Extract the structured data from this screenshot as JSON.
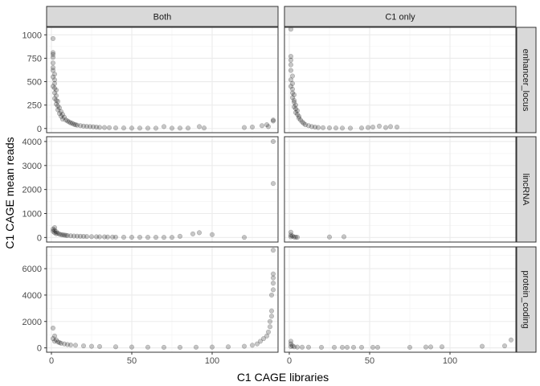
{
  "chart_data": {
    "type": "scatter",
    "title": "",
    "xlabel": "C1 CAGE libraries",
    "ylabel": "C1 CAGE mean reads",
    "xlim": [
      -3,
      141
    ],
    "x_ticks": [
      0,
      50,
      100
    ],
    "grid": true,
    "legend": "none",
    "point_color": "#000000",
    "point_opacity": 0.22,
    "panel_border": "#333333",
    "strip_fill": "#d9d9d9",
    "columns": [
      "Both",
      "C1 only"
    ],
    "rows": [
      {
        "label": "enhancer_locus",
        "ylim": [
          -45,
          1080
        ],
        "y_ticks": [
          0,
          250,
          500,
          750,
          1000
        ]
      },
      {
        "label": "lincRNA",
        "ylim": [
          -190,
          4200
        ],
        "y_ticks": [
          0,
          1000,
          2000,
          3000,
          4000
        ]
      },
      {
        "label": "protein_coding",
        "ylim": [
          -330,
          7650
        ],
        "y_ticks": [
          0,
          2000,
          4000,
          6000
        ]
      }
    ],
    "panels": [
      {
        "row": "enhancer_locus",
        "column": "Both",
        "points": [
          [
            1,
            960
          ],
          [
            1,
            810
          ],
          [
            1,
            790
          ],
          [
            1,
            760
          ],
          [
            1,
            700
          ],
          [
            1,
            650
          ],
          [
            1,
            620
          ],
          [
            2,
            580
          ],
          [
            1,
            550
          ],
          [
            2,
            520
          ],
          [
            2,
            480
          ],
          [
            1,
            450
          ],
          [
            2,
            430
          ],
          [
            3,
            410
          ],
          [
            2,
            380
          ],
          [
            3,
            350
          ],
          [
            2,
            320
          ],
          [
            3,
            300
          ],
          [
            4,
            290
          ],
          [
            3,
            260
          ],
          [
            4,
            240
          ],
          [
            5,
            220
          ],
          [
            4,
            200
          ],
          [
            6,
            180
          ],
          [
            5,
            160
          ],
          [
            7,
            150
          ],
          [
            6,
            130
          ],
          [
            8,
            120
          ],
          [
            7,
            100
          ],
          [
            9,
            90
          ],
          [
            10,
            80
          ],
          [
            11,
            70
          ],
          [
            12,
            60
          ],
          [
            13,
            55
          ],
          [
            14,
            45
          ],
          [
            15,
            40
          ],
          [
            16,
            35
          ],
          [
            18,
            30
          ],
          [
            20,
            25
          ],
          [
            22,
            22
          ],
          [
            24,
            20
          ],
          [
            26,
            18
          ],
          [
            28,
            15
          ],
          [
            30,
            12
          ],
          [
            33,
            10
          ],
          [
            36,
            8
          ],
          [
            40,
            6
          ],
          [
            45,
            5
          ],
          [
            50,
            4
          ],
          [
            55,
            4
          ],
          [
            60,
            3
          ],
          [
            65,
            3
          ],
          [
            70,
            20
          ],
          [
            75,
            3
          ],
          [
            80,
            4
          ],
          [
            85,
            4
          ],
          [
            92,
            20
          ],
          [
            95,
            5
          ],
          [
            120,
            10
          ],
          [
            125,
            15
          ],
          [
            131,
            30
          ],
          [
            134,
            40
          ],
          [
            135,
            20
          ],
          [
            138,
            80
          ],
          [
            138,
            90
          ]
        ]
      },
      {
        "row": "enhancer_locus",
        "column": "C1 only",
        "points": [
          [
            1,
            1060
          ],
          [
            1,
            770
          ],
          [
            1,
            730
          ],
          [
            1,
            680
          ],
          [
            1,
            620
          ],
          [
            2,
            560
          ],
          [
            1,
            520
          ],
          [
            2,
            480
          ],
          [
            1,
            450
          ],
          [
            2,
            420
          ],
          [
            2,
            380
          ],
          [
            3,
            360
          ],
          [
            2,
            330
          ],
          [
            3,
            300
          ],
          [
            3,
            280
          ],
          [
            4,
            250
          ],
          [
            3,
            230
          ],
          [
            4,
            210
          ],
          [
            5,
            190
          ],
          [
            4,
            170
          ],
          [
            5,
            150
          ],
          [
            6,
            130
          ],
          [
            6,
            110
          ],
          [
            7,
            90
          ],
          [
            8,
            70
          ],
          [
            9,
            55
          ],
          [
            10,
            40
          ],
          [
            12,
            30
          ],
          [
            14,
            20
          ],
          [
            16,
            15
          ],
          [
            18,
            10
          ],
          [
            21,
            8
          ],
          [
            25,
            6
          ],
          [
            29,
            5
          ],
          [
            33,
            4
          ],
          [
            38,
            3
          ],
          [
            45,
            5
          ],
          [
            49,
            10
          ],
          [
            52,
            15
          ],
          [
            56,
            25
          ],
          [
            60,
            10
          ],
          [
            63,
            20
          ],
          [
            67,
            15
          ]
        ]
      },
      {
        "row": "lincRNA",
        "column": "Both",
        "points": [
          [
            2,
            410
          ],
          [
            1,
            350
          ],
          [
            2,
            300
          ],
          [
            1,
            260
          ],
          [
            3,
            240
          ],
          [
            2,
            200
          ],
          [
            4,
            180
          ],
          [
            3,
            160
          ],
          [
            5,
            140
          ],
          [
            6,
            120
          ],
          [
            7,
            110
          ],
          [
            8,
            100
          ],
          [
            9,
            90
          ],
          [
            10,
            80
          ],
          [
            12,
            70
          ],
          [
            14,
            60
          ],
          [
            16,
            55
          ],
          [
            18,
            50
          ],
          [
            20,
            45
          ],
          [
            22,
            40
          ],
          [
            25,
            35
          ],
          [
            28,
            30
          ],
          [
            30,
            28
          ],
          [
            33,
            25
          ],
          [
            35,
            20
          ],
          [
            38,
            18
          ],
          [
            40,
            15
          ],
          [
            45,
            12
          ],
          [
            50,
            10
          ],
          [
            55,
            10
          ],
          [
            60,
            8
          ],
          [
            65,
            8
          ],
          [
            70,
            6
          ],
          [
            75,
            6
          ],
          [
            80,
            50
          ],
          [
            88,
            150
          ],
          [
            92,
            200
          ],
          [
            100,
            120
          ],
          [
            120,
            5
          ],
          [
            138,
            4000
          ],
          [
            138,
            2250
          ]
        ]
      },
      {
        "row": "lincRNA",
        "column": "C1 only",
        "points": [
          [
            1,
            220
          ],
          [
            1,
            100
          ],
          [
            2,
            60
          ],
          [
            1,
            30
          ],
          [
            3,
            20
          ],
          [
            4,
            15
          ],
          [
            5,
            10
          ],
          [
            25,
            20
          ],
          [
            34,
            30
          ]
        ]
      },
      {
        "row": "protein_coding",
        "column": "Both",
        "points": [
          [
            1,
            1500
          ],
          [
            2,
            900
          ],
          [
            1,
            700
          ],
          [
            3,
            600
          ],
          [
            2,
            500
          ],
          [
            4,
            450
          ],
          [
            5,
            400
          ],
          [
            6,
            350
          ],
          [
            8,
            300
          ],
          [
            10,
            250
          ],
          [
            12,
            220
          ],
          [
            15,
            200
          ],
          [
            20,
            150
          ],
          [
            25,
            120
          ],
          [
            30,
            100
          ],
          [
            40,
            80
          ],
          [
            50,
            60
          ],
          [
            60,
            50
          ],
          [
            70,
            40
          ],
          [
            80,
            40
          ],
          [
            90,
            50
          ],
          [
            100,
            60
          ],
          [
            110,
            80
          ],
          [
            120,
            120
          ],
          [
            125,
            200
          ],
          [
            128,
            300
          ],
          [
            130,
            500
          ],
          [
            132,
            700
          ],
          [
            134,
            900
          ],
          [
            135,
            1200
          ],
          [
            136,
            1600
          ],
          [
            136,
            2000
          ],
          [
            137,
            2400
          ],
          [
            137,
            2800
          ],
          [
            137,
            4000
          ],
          [
            138,
            4400
          ],
          [
            138,
            4900
          ],
          [
            138,
            5300
          ],
          [
            138,
            5600
          ],
          [
            138,
            7400
          ]
        ]
      },
      {
        "row": "protein_coding",
        "column": "C1 only",
        "points": [
          [
            1,
            500
          ],
          [
            1,
            300
          ],
          [
            2,
            150
          ],
          [
            1,
            100
          ],
          [
            3,
            80
          ],
          [
            5,
            60
          ],
          [
            8,
            50
          ],
          [
            12,
            50
          ],
          [
            20,
            40
          ],
          [
            28,
            40
          ],
          [
            33,
            40
          ],
          [
            36,
            40
          ],
          [
            40,
            40
          ],
          [
            45,
            40
          ],
          [
            52,
            40
          ],
          [
            55,
            40
          ],
          [
            75,
            40
          ],
          [
            85,
            60
          ],
          [
            88,
            70
          ],
          [
            95,
            80
          ],
          [
            120,
            120
          ],
          [
            134,
            150
          ],
          [
            138,
            600
          ]
        ]
      }
    ]
  }
}
